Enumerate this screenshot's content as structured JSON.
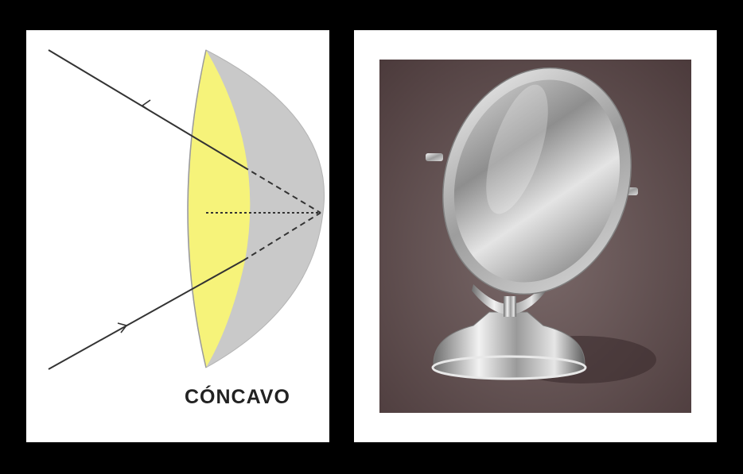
{
  "diagram": {
    "label": "CÓNCAVO",
    "colors": {
      "frame": "#000000",
      "panel": "#ffffff",
      "mirror_body": "#c9c9c9",
      "reflective_face": "#f6f37a",
      "rays": "#333333"
    }
  },
  "photo": {
    "subject": "table-mirror",
    "colors": {
      "backdrop": "#5b4a4b",
      "chrome": "#c8c8c8"
    }
  }
}
